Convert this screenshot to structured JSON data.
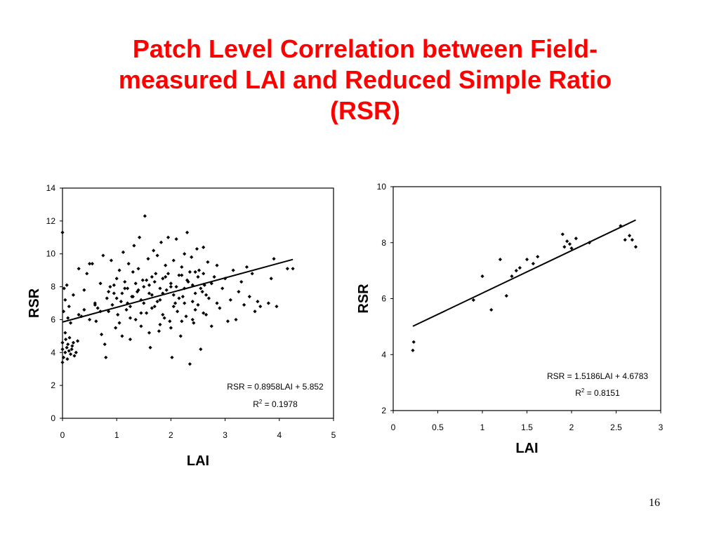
{
  "slide": {
    "title_lines": [
      "Patch Level Correlation between Field-",
      "measured LAI and Reduced Simple Ratio",
      "(RSR)"
    ],
    "page_number": "16"
  },
  "colors": {
    "title": "#ff0000",
    "marks": "#000000"
  },
  "chart_data": [
    {
      "type": "scatter",
      "title": "",
      "xlabel": "LAI",
      "ylabel": "RSR",
      "xlim": [
        0,
        5
      ],
      "ylim": [
        0,
        14
      ],
      "x_ticks": [
        "0",
        "1",
        "2",
        "3",
        "4",
        "5"
      ],
      "y_ticks": [
        "0",
        "2",
        "4",
        "6",
        "8",
        "10",
        "12",
        "14"
      ],
      "grid": false,
      "legend": "none",
      "trendline": {
        "slope": 0.8958,
        "intercept": 5.852,
        "x_range": [
          0,
          4.25
        ]
      },
      "equation": "RSR = 0.8958LAI + 5.852",
      "r2_label": "R",
      "r2_sup": "2",
      "r2_value": " = 0.1978",
      "series": [
        {
          "values_note": "",
          "points": [
            [
              0.0,
              11.3
            ],
            [
              0.02,
              6.5
            ],
            [
              0.03,
              7.9
            ],
            [
              0.05,
              5.2
            ],
            [
              0.0,
              4.6
            ],
            [
              0.0,
              4.2
            ],
            [
              0.02,
              3.7
            ],
            [
              0.0,
              3.4
            ],
            [
              0.05,
              4.0
            ],
            [
              0.08,
              4.3
            ],
            [
              0.1,
              4.5
            ],
            [
              0.12,
              4.1
            ],
            [
              0.15,
              3.9
            ],
            [
              0.18,
              4.4
            ],
            [
              0.2,
              4.6
            ],
            [
              0.22,
              3.8
            ],
            [
              0.06,
              4.8
            ],
            [
              0.09,
              3.6
            ],
            [
              0.13,
              4.9
            ],
            [
              0.17,
              4.2
            ],
            [
              0.25,
              4.0
            ],
            [
              0.28,
              4.7
            ],
            [
              0.1,
              6.1
            ],
            [
              0.05,
              7.2
            ],
            [
              0.08,
              8.1
            ],
            [
              0.12,
              6.8
            ],
            [
              0.15,
              5.8
            ],
            [
              0.2,
              7.5
            ],
            [
              0.3,
              9.1
            ],
            [
              0.35,
              6.2
            ],
            [
              0.4,
              7.8
            ],
            [
              0.45,
              8.8
            ],
            [
              0.5,
              9.4
            ],
            [
              0.55,
              9.4
            ],
            [
              0.6,
              7.0
            ],
            [
              0.62,
              5.9
            ],
            [
              0.65,
              6.7
            ],
            [
              0.7,
              8.2
            ],
            [
              0.72,
              5.1
            ],
            [
              0.75,
              9.9
            ],
            [
              0.78,
              4.5
            ],
            [
              0.8,
              3.7
            ],
            [
              0.82,
              7.3
            ],
            [
              0.85,
              6.5
            ],
            [
              0.88,
              8.0
            ],
            [
              0.9,
              9.6
            ],
            [
              0.92,
              6.9
            ],
            [
              0.95,
              7.6
            ],
            [
              0.98,
              5.5
            ],
            [
              1.0,
              8.5
            ],
            [
              1.02,
              6.3
            ],
            [
              1.05,
              9.0
            ],
            [
              1.08,
              7.1
            ],
            [
              1.1,
              5.0
            ],
            [
              1.12,
              10.1
            ],
            [
              1.15,
              8.3
            ],
            [
              1.18,
              6.6
            ],
            [
              1.2,
              7.9
            ],
            [
              1.22,
              9.4
            ],
            [
              1.25,
              4.8
            ],
            [
              1.28,
              7.4
            ],
            [
              1.3,
              8.9
            ],
            [
              1.32,
              10.5
            ],
            [
              1.35,
              6.0
            ],
            [
              1.38,
              7.7
            ],
            [
              1.4,
              9.1
            ],
            [
              1.42,
              11.0
            ],
            [
              1.45,
              5.6
            ],
            [
              1.48,
              8.4
            ],
            [
              1.5,
              7.0
            ],
            [
              1.52,
              12.3
            ],
            [
              1.55,
              6.4
            ],
            [
              1.58,
              9.7
            ],
            [
              1.6,
              8.1
            ],
            [
              1.62,
              4.3
            ],
            [
              1.65,
              7.5
            ],
            [
              1.68,
              10.2
            ],
            [
              1.7,
              6.8
            ],
            [
              1.72,
              8.8
            ],
            [
              1.75,
              9.9
            ],
            [
              1.78,
              5.3
            ],
            [
              1.8,
              7.2
            ],
            [
              1.82,
              10.7
            ],
            [
              1.85,
              8.5
            ],
            [
              1.88,
              6.1
            ],
            [
              1.9,
              9.3
            ],
            [
              1.92,
              7.8
            ],
            [
              1.95,
              11.0
            ],
            [
              1.98,
              5.9
            ],
            [
              2.0,
              8.0
            ],
            [
              2.02,
              3.7
            ],
            [
              2.05,
              9.6
            ],
            [
              2.08,
              7.0
            ],
            [
              2.1,
              10.9
            ],
            [
              2.12,
              6.5
            ],
            [
              2.15,
              8.7
            ],
            [
              2.18,
              5.0
            ],
            [
              2.2,
              9.2
            ],
            [
              2.22,
              7.4
            ],
            [
              2.25,
              10.0
            ],
            [
              2.28,
              6.2
            ],
            [
              2.3,
              11.3
            ],
            [
              2.32,
              8.3
            ],
            [
              2.35,
              3.3
            ],
            [
              2.38,
              9.8
            ],
            [
              2.4,
              7.1
            ],
            [
              2.42,
              5.8
            ],
            [
              2.45,
              8.9
            ],
            [
              2.48,
              10.3
            ],
            [
              2.5,
              6.9
            ],
            [
              2.52,
              9.0
            ],
            [
              2.55,
              4.2
            ],
            [
              2.58,
              7.7
            ],
            [
              2.6,
              10.4
            ],
            [
              2.62,
              8.1
            ],
            [
              2.65,
              6.3
            ],
            [
              2.68,
              9.5
            ],
            [
              2.7,
              7.3
            ],
            [
              2.75,
              5.6
            ],
            [
              2.8,
              8.6
            ],
            [
              2.85,
              9.3
            ],
            [
              2.9,
              6.7
            ],
            [
              2.95,
              7.9
            ],
            [
              3.0,
              8.5
            ],
            [
              3.05,
              5.9
            ],
            [
              3.1,
              7.2
            ],
            [
              3.15,
              9.0
            ],
            [
              3.2,
              6.0
            ],
            [
              3.25,
              7.7
            ],
            [
              3.3,
              8.3
            ],
            [
              3.35,
              6.9
            ],
            [
              3.4,
              9.2
            ],
            [
              3.45,
              7.4
            ],
            [
              3.5,
              8.8
            ],
            [
              3.55,
              6.5
            ],
            [
              3.6,
              7.1
            ],
            [
              3.65,
              6.8
            ],
            [
              3.8,
              7.0
            ],
            [
              3.85,
              8.5
            ],
            [
              3.9,
              9.7
            ],
            [
              3.95,
              6.8
            ],
            [
              4.15,
              9.1
            ],
            [
              4.25,
              9.1
            ],
            [
              1.0,
              7.3
            ],
            [
              1.1,
              7.6
            ],
            [
              1.2,
              7.0
            ],
            [
              1.3,
              7.4
            ],
            [
              1.4,
              7.8
            ],
            [
              1.5,
              8.0
            ],
            [
              1.6,
              7.6
            ],
            [
              1.7,
              8.3
            ],
            [
              1.8,
              7.9
            ],
            [
              1.9,
              8.6
            ],
            [
              2.0,
              8.2
            ],
            [
              2.1,
              8.0
            ],
            [
              2.2,
              8.7
            ],
            [
              2.3,
              8.4
            ],
            [
              2.4,
              8.1
            ],
            [
              2.5,
              8.6
            ],
            [
              2.6,
              8.8
            ],
            [
              1.25,
              6.8
            ],
            [
              1.45,
              7.2
            ],
            [
              1.65,
              8.6
            ],
            [
              1.85,
              7.6
            ],
            [
              2.05,
              7.5
            ],
            [
              2.25,
              7.9
            ],
            [
              2.45,
              7.6
            ],
            [
              0.85,
              7.7
            ],
            [
              0.95,
              8.1
            ],
            [
              1.15,
              7.9
            ],
            [
              1.35,
              8.2
            ],
            [
              1.55,
              8.4
            ],
            [
              1.75,
              7.1
            ],
            [
              1.95,
              8.8
            ],
            [
              2.15,
              7.3
            ],
            [
              2.35,
              8.9
            ],
            [
              2.55,
              7.9
            ],
            [
              2.75,
              8.2
            ],
            [
              0.7,
              6.5
            ],
            [
              0.6,
              6.9
            ],
            [
              0.5,
              6.0
            ],
            [
              0.4,
              6.6
            ],
            [
              0.3,
              6.3
            ],
            [
              1.05,
              5.8
            ],
            [
              1.25,
              6.1
            ],
            [
              1.45,
              6.4
            ],
            [
              1.65,
              6.7
            ],
            [
              1.85,
              6.3
            ],
            [
              2.05,
              6.8
            ],
            [
              2.25,
              7.0
            ],
            [
              2.45,
              6.6
            ],
            [
              2.65,
              7.5
            ],
            [
              2.85,
              7.0
            ],
            [
              1.6,
              5.2
            ],
            [
              1.8,
              5.7
            ],
            [
              2.0,
              5.5
            ],
            [
              2.2,
              5.9
            ],
            [
              2.4,
              6.0
            ],
            [
              2.6,
              6.4
            ]
          ]
        }
      ]
    },
    {
      "type": "scatter",
      "title": "",
      "xlabel": "LAI",
      "ylabel": "RSR",
      "xlim": [
        0,
        3
      ],
      "ylim": [
        2,
        10
      ],
      "x_ticks": [
        "0",
        "0.5",
        "1",
        "1.5",
        "2",
        "2.5",
        "3"
      ],
      "y_ticks": [
        "2",
        "4",
        "6",
        "8",
        "10"
      ],
      "grid": false,
      "legend": "none",
      "trendline": {
        "slope": 1.5186,
        "intercept": 4.6783,
        "x_range": [
          0.22,
          2.72
        ]
      },
      "equation": "RSR = 1.5186LAI + 4.6783",
      "r2_label": "R",
      "r2_sup": "2",
      "r2_value": " = 0.8151",
      "series": [
        {
          "points": [
            [
              0.22,
              4.15
            ],
            [
              0.23,
              4.45
            ],
            [
              0.9,
              5.95
            ],
            [
              1.0,
              6.8
            ],
            [
              1.1,
              5.6
            ],
            [
              1.2,
              7.4
            ],
            [
              1.27,
              6.1
            ],
            [
              1.33,
              6.8
            ],
            [
              1.38,
              7.0
            ],
            [
              1.42,
              7.1
            ],
            [
              1.5,
              7.4
            ],
            [
              1.57,
              7.25
            ],
            [
              1.62,
              7.5
            ],
            [
              1.9,
              8.3
            ],
            [
              1.92,
              7.85
            ],
            [
              1.95,
              8.05
            ],
            [
              1.98,
              7.95
            ],
            [
              2.0,
              7.8
            ],
            [
              2.05,
              8.15
            ],
            [
              2.2,
              8.0
            ],
            [
              2.55,
              8.6
            ],
            [
              2.6,
              8.1
            ],
            [
              2.65,
              8.25
            ],
            [
              2.68,
              8.1
            ],
            [
              2.72,
              7.85
            ]
          ]
        }
      ]
    }
  ]
}
